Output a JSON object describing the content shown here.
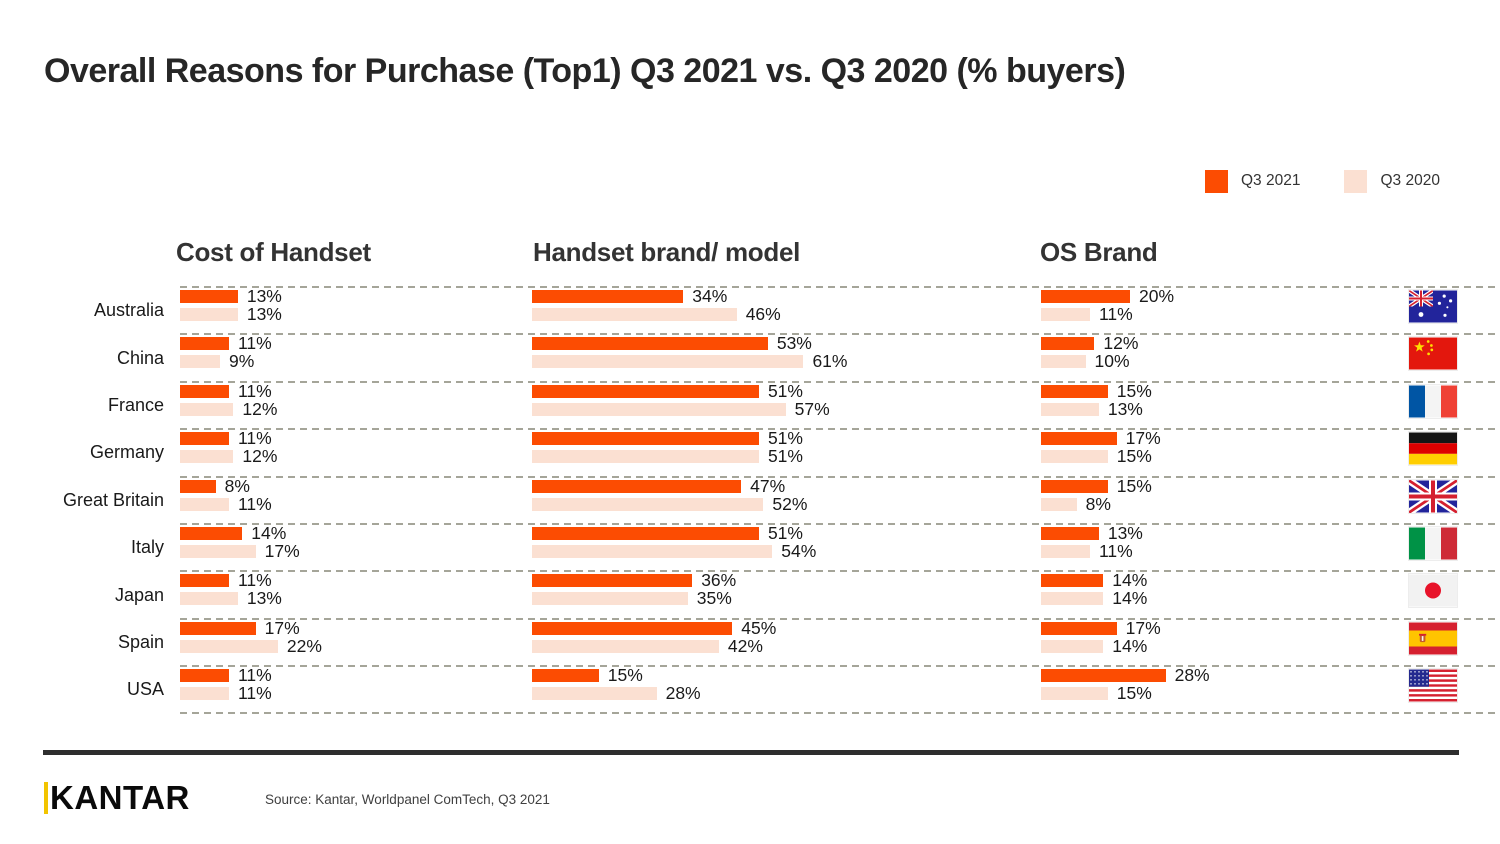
{
  "title": "Overall Reasons for Purchase (Top1) Q3 2021 vs. Q3 2020 (% buyers)",
  "footer": {
    "logo_text": "KANTAR",
    "source": "Source: Kantar, Worldpanel ComTech, Q3 2021"
  },
  "chart_data": {
    "type": "bar",
    "orientation": "horizontal",
    "unit": "%",
    "title": "Overall Reasons for Purchase (Top1) Q3 2021 vs. Q3 2020 (% buyers)",
    "legend_position": "top-right",
    "series_names": [
      "Q3 2021",
      "Q3 2020"
    ],
    "colors": {
      "q3_2021": "#FC4C02",
      "q3_2020": "#FBE0D2"
    },
    "categories": [
      "Cost of Handset",
      "Handset brand/ model",
      "OS Brand"
    ],
    "gridlines": "dashed horizontal row separators",
    "value_labels": "at bar end, percent",
    "rows": [
      {
        "country": "Australia",
        "flag": "au",
        "cost": [
          13,
          13
        ],
        "brand": [
          34,
          46
        ],
        "os": [
          20,
          11
        ]
      },
      {
        "country": "China",
        "flag": "cn",
        "cost": [
          11,
          9
        ],
        "brand": [
          53,
          61
        ],
        "os": [
          12,
          10
        ]
      },
      {
        "country": "France",
        "flag": "fr",
        "cost": [
          11,
          12
        ],
        "brand": [
          51,
          57
        ],
        "os": [
          15,
          13
        ]
      },
      {
        "country": "Germany",
        "flag": "de",
        "cost": [
          11,
          12
        ],
        "brand": [
          51,
          51
        ],
        "os": [
          17,
          15
        ]
      },
      {
        "country": "Great Britain",
        "flag": "gb",
        "cost": [
          8,
          11
        ],
        "brand": [
          47,
          52
        ],
        "os": [
          15,
          8
        ]
      },
      {
        "country": "Italy",
        "flag": "it",
        "cost": [
          14,
          17
        ],
        "brand": [
          51,
          54
        ],
        "os": [
          13,
          11
        ]
      },
      {
        "country": "Japan",
        "flag": "jp",
        "cost": [
          11,
          13
        ],
        "brand": [
          36,
          35
        ],
        "os": [
          14,
          14
        ]
      },
      {
        "country": "Spain",
        "flag": "es",
        "cost": [
          17,
          22
        ],
        "brand": [
          45,
          42
        ],
        "os": [
          17,
          14
        ]
      },
      {
        "country": "USA",
        "flag": "us",
        "cost": [
          11,
          11
        ],
        "brand": [
          15,
          28
        ],
        "os": [
          28,
          15
        ]
      }
    ]
  }
}
